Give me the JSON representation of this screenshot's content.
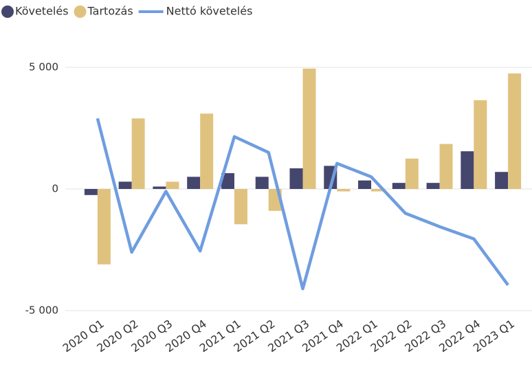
{
  "chart_data": {
    "type": "bar",
    "categories": [
      "2020 Q1",
      "2020 Q2",
      "2020 Q3",
      "2020 Q4",
      "2021 Q1",
      "2021 Q2",
      "2021 Q3",
      "2021 Q4",
      "2022 Q1",
      "2022 Q2",
      "2022 Q3",
      "2022 Q4",
      "2023 Q1"
    ],
    "series": [
      {
        "name": "Követelés",
        "type": "bar",
        "color": "#45466e",
        "values": [
          -250,
          300,
          100,
          500,
          650,
          500,
          850,
          950,
          350,
          250,
          250,
          1550,
          700
        ]
      },
      {
        "name": "Tartozás",
        "type": "bar",
        "color": "#e0c27f",
        "values": [
          -3100,
          2900,
          300,
          3100,
          -1450,
          -900,
          4950,
          -100,
          -100,
          1250,
          1850,
          3650,
          4750
        ]
      },
      {
        "name": "Nettó követelés",
        "type": "line",
        "color": "#6f9de0",
        "values": [
          2900,
          -2600,
          -100,
          -2550,
          2150,
          1500,
          -4100,
          1050,
          500,
          -1000,
          -1550,
          -2050,
          -3950
        ]
      }
    ],
    "ylim": [
      -5000,
      5000
    ],
    "yticks": [
      {
        "value": -5000,
        "label": "-5 000"
      },
      0,
      {
        "value": 5000,
        "label": "5 000"
      }
    ],
    "grid": true,
    "legend": "top-left"
  }
}
